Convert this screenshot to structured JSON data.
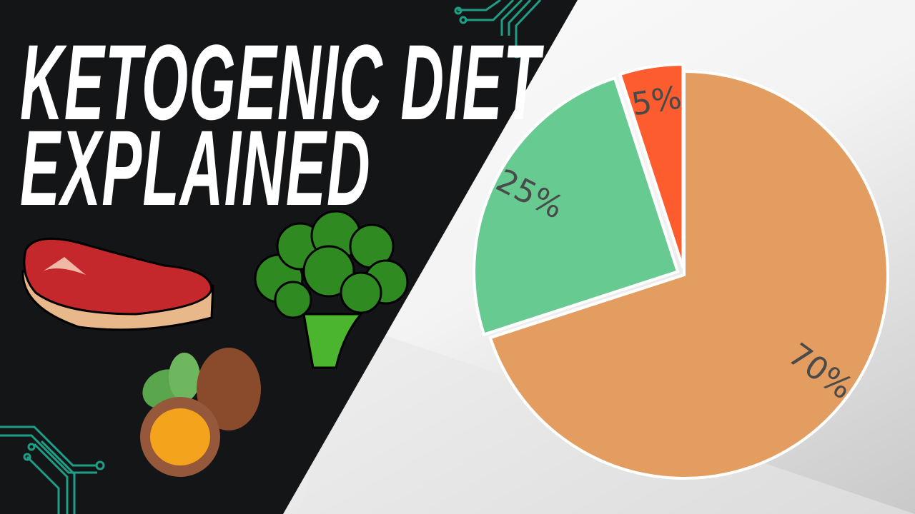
{
  "title": {
    "line1": "KETOGENIC DIET",
    "line2": "EXPLAINED"
  },
  "illustrations": [
    "steak-icon",
    "broccoli-icon",
    "nuts-icon",
    "circuit-decoration"
  ],
  "colors": {
    "dark_panel": "#141517",
    "circuit": "#1f9e86"
  },
  "chart_data": {
    "type": "pie",
    "start": "12 o'clock, clockwise",
    "slices": [
      {
        "label": "70%",
        "value": 70,
        "color": "#e39d60"
      },
      {
        "label": "25%",
        "value": 25,
        "color": "#67cb91"
      },
      {
        "label": "5%",
        "value": 5,
        "color": "#fd5c2f"
      }
    ],
    "exploded": [
      "25%",
      "5%"
    ],
    "legend": "none"
  }
}
